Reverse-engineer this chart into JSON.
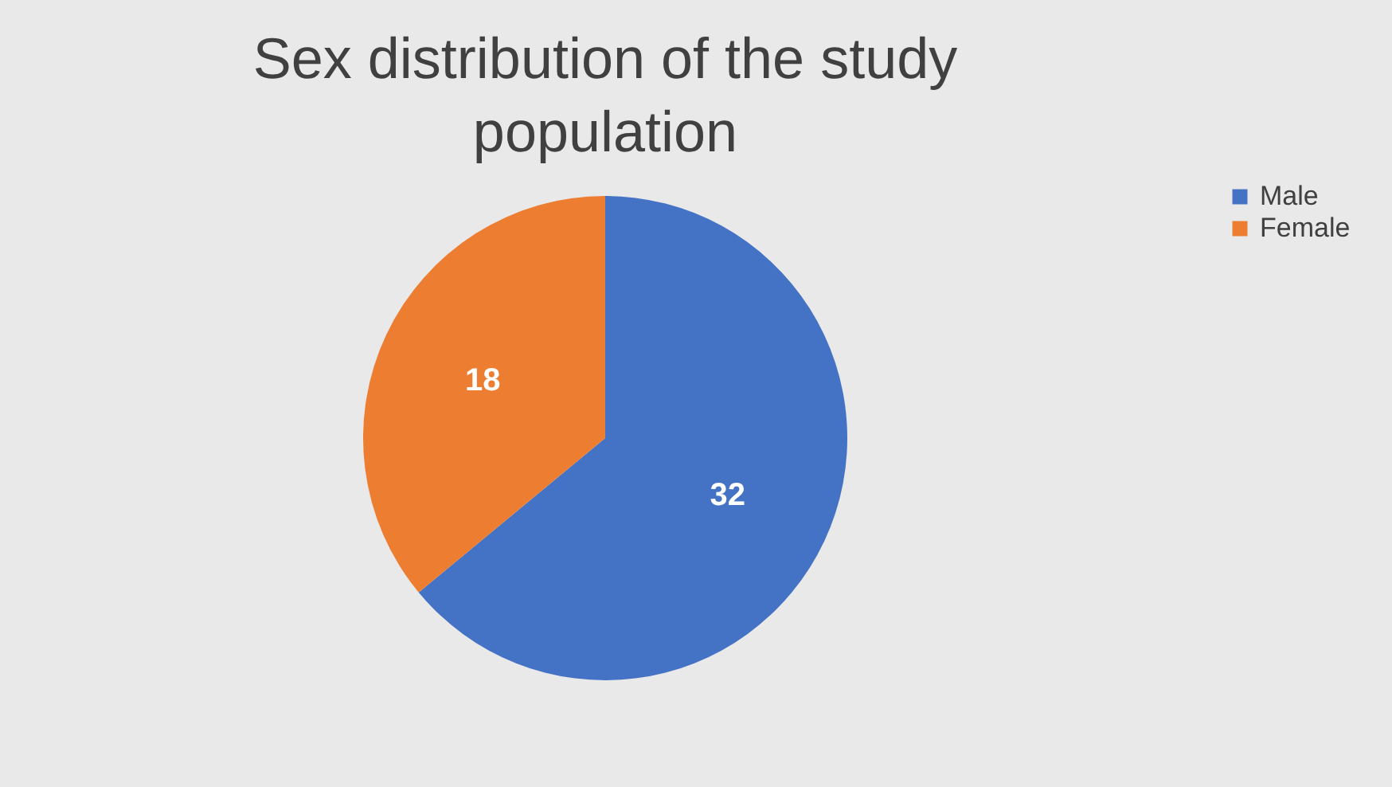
{
  "chart_data": {
    "type": "pie",
    "title": "Sex distribution of the study population",
    "categories": [
      "Male",
      "Female"
    ],
    "values": [
      32,
      18
    ],
    "colors": [
      "#4472c4",
      "#ed7d31"
    ],
    "data_labels": true,
    "legend": "right"
  }
}
